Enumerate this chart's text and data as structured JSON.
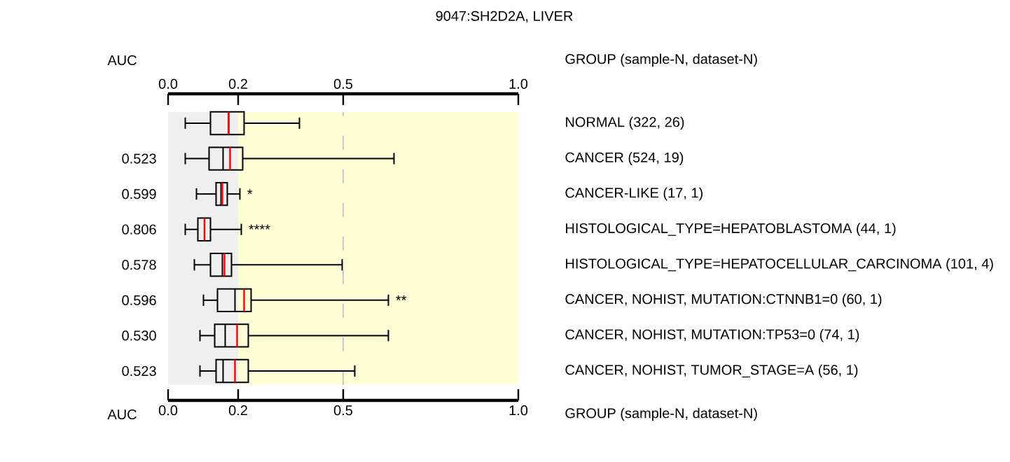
{
  "chart_data": {
    "type": "box",
    "orientation": "horizontal",
    "title": "9047:SH2D2A, LIVER",
    "ylabel": "AUC",
    "y2label": "GROUP (sample-N, dataset-N)",
    "categories": [
      "NORMAL (322, 26)",
      "CANCER (524, 19)",
      "CANCER-LIKE (17, 1)",
      "HISTOLOGICAL_TYPE=HEPATOBLASTOMA (44, 1)",
      "HISTOLOGICAL_TYPE=HEPATOCELLULAR_CARCINOMA (101, 4)",
      "CANCER, NOHIST, MUTATION:CTNNB1=0 (60, 1)",
      "CANCER, NOHIST, MUTATION:TP53=0 (74, 1)",
      "CANCER, NOHIST, TUMOR_STAGE=A (56, 1)"
    ],
    "boxes": [
      {
        "low": 0.049,
        "q1": 0.121,
        "median": 0.173,
        "q3": 0.217,
        "high": 0.375,
        "mean": 0.173
      },
      {
        "low": 0.049,
        "q1": 0.117,
        "median": 0.157,
        "q3": 0.213,
        "high": 0.645,
        "mean": 0.177
      },
      {
        "low": 0.081,
        "q1": 0.137,
        "median": 0.151,
        "q3": 0.169,
        "high": 0.205,
        "mean": 0.155
      },
      {
        "low": 0.049,
        "q1": 0.085,
        "median": 0.104,
        "q3": 0.121,
        "high": 0.209,
        "mean": 0.104
      },
      {
        "low": 0.075,
        "q1": 0.121,
        "median": 0.155,
        "q3": 0.181,
        "high": 0.497,
        "mean": 0.161
      },
      {
        "low": 0.101,
        "q1": 0.141,
        "median": 0.191,
        "q3": 0.237,
        "high": 0.629,
        "mean": 0.217
      },
      {
        "low": 0.091,
        "q1": 0.133,
        "median": 0.163,
        "q3": 0.229,
        "high": 0.629,
        "mean": 0.197
      },
      {
        "low": 0.091,
        "q1": 0.137,
        "median": 0.157,
        "q3": 0.229,
        "high": 0.533,
        "mean": 0.191
      }
    ],
    "value_labels": [
      null,
      "0.523",
      "0.599",
      "0.806",
      "0.578",
      "0.596",
      "0.530",
      "0.523"
    ],
    "xlim": [
      0,
      1
    ],
    "xticks": [
      {
        "value": 0,
        "label": "0.0"
      },
      0.2,
      0.5,
      {
        "value": 1,
        "label": "1.0"
      }
    ],
    "x2lim": [
      0,
      1
    ],
    "x2ticks": [
      {
        "value": 0,
        "label": "0.0"
      },
      0.2,
      0.5,
      {
        "value": 1,
        "label": "1.0"
      }
    ],
    "bands": [
      {
        "axis": "x",
        "from": 0,
        "to": 0.2,
        "color": "#efefef"
      },
      {
        "axis": "x",
        "from": 0.2,
        "to": 1,
        "color": "#ffffd5"
      }
    ],
    "ref_lines": [
      {
        "axis": "x",
        "value": 0.5,
        "color": "#c8c8c8",
        "line_style": "dashed"
      }
    ],
    "annotations": [
      {
        "text": "*",
        "x": 0.205,
        "y": "CANCER-LIKE (17, 1)"
      },
      {
        "text": "****",
        "x": 0.209,
        "y": "HISTOLOGICAL_TYPE=HEPATOBLASTOMA (44, 1)"
      },
      {
        "text": "**",
        "x": 0.629,
        "y": "CANCER, NOHIST, MUTATION:CTNNB1=0 (60, 1)"
      }
    ]
  }
}
